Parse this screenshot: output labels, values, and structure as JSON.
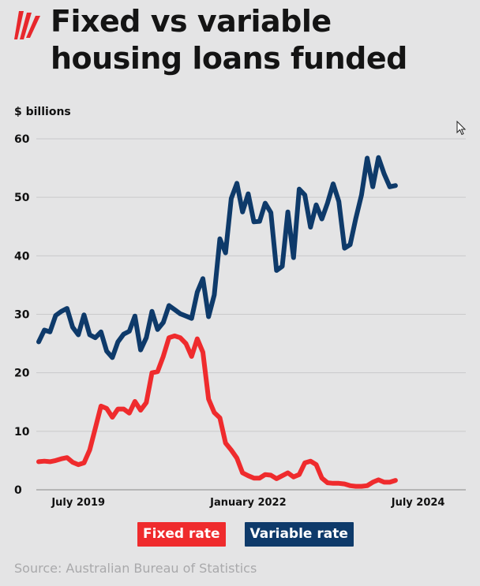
{
  "header": {
    "title_line1": "Fixed vs variable",
    "title_line2": "housing loans funded",
    "logo_icon": "sbs-flame-logo-icon",
    "logo_color": "#e8272c"
  },
  "chart_data": {
    "type": "line",
    "title": "Fixed vs variable housing loans funded",
    "ylabel": "$ billions",
    "xlabel": "",
    "ylim": [
      0,
      60
    ],
    "yticks": [
      0,
      10,
      20,
      30,
      40,
      50,
      60
    ],
    "grid": true,
    "legend_position": "bottom",
    "x_range": [
      "2018-12",
      "2025-03"
    ],
    "xticks": [
      {
        "label": "July 2019",
        "date": "2019-07"
      },
      {
        "label": "January 2022",
        "date": "2022-01"
      },
      {
        "label": "July 2024",
        "date": "2024-07"
      }
    ],
    "series": [
      {
        "name": "Fixed rate",
        "color": "#ef2b2d",
        "points": [
          [
            "2018-12",
            4.8
          ],
          [
            "2019-01",
            4.9
          ],
          [
            "2019-02",
            4.8
          ],
          [
            "2019-03",
            5.0
          ],
          [
            "2019-04",
            5.3
          ],
          [
            "2019-05",
            5.5
          ],
          [
            "2019-06",
            4.7
          ],
          [
            "2019-07",
            4.3
          ],
          [
            "2019-08",
            4.6
          ],
          [
            "2019-09",
            6.8
          ],
          [
            "2019-10",
            10.5
          ],
          [
            "2019-11",
            14.3
          ],
          [
            "2019-12",
            13.9
          ],
          [
            "2020-01",
            12.4
          ],
          [
            "2020-02",
            13.8
          ],
          [
            "2020-03",
            13.8
          ],
          [
            "2020-04",
            13.1
          ],
          [
            "2020-05",
            15.1
          ],
          [
            "2020-06",
            13.6
          ],
          [
            "2020-07",
            14.9
          ],
          [
            "2020-08",
            20.0
          ],
          [
            "2020-09",
            20.2
          ],
          [
            "2020-10",
            22.8
          ],
          [
            "2020-11",
            26.0
          ],
          [
            "2020-12",
            26.3
          ],
          [
            "2021-01",
            26.0
          ],
          [
            "2021-02",
            25.0
          ],
          [
            "2021-03",
            22.8
          ],
          [
            "2021-04",
            25.8
          ],
          [
            "2021-05",
            23.5
          ],
          [
            "2021-06",
            15.5
          ],
          [
            "2021-07",
            13.2
          ],
          [
            "2021-08",
            12.3
          ],
          [
            "2021-09",
            8.0
          ],
          [
            "2021-10",
            6.8
          ],
          [
            "2021-11",
            5.4
          ],
          [
            "2021-12",
            2.9
          ],
          [
            "2022-01",
            2.4
          ],
          [
            "2022-02",
            2.0
          ],
          [
            "2022-03",
            2.0
          ],
          [
            "2022-04",
            2.6
          ],
          [
            "2022-05",
            2.5
          ],
          [
            "2022-06",
            1.9
          ],
          [
            "2022-07",
            2.4
          ],
          [
            "2022-08",
            2.9
          ],
          [
            "2022-09",
            2.2
          ],
          [
            "2022-10",
            2.6
          ],
          [
            "2022-11",
            4.6
          ],
          [
            "2022-12",
            4.9
          ],
          [
            "2023-01",
            4.3
          ],
          [
            "2023-02",
            2.0
          ],
          [
            "2023-03",
            1.2
          ],
          [
            "2023-04",
            1.1
          ],
          [
            "2023-05",
            1.1
          ],
          [
            "2023-06",
            1.0
          ],
          [
            "2023-07",
            0.7
          ],
          [
            "2023-08",
            0.6
          ],
          [
            "2023-09",
            0.6
          ],
          [
            "2023-10",
            0.7
          ],
          [
            "2023-11",
            1.3
          ],
          [
            "2023-12",
            1.7
          ],
          [
            "2024-01",
            1.3
          ],
          [
            "2024-02",
            1.3
          ],
          [
            "2024-03",
            1.6
          ]
        ]
      },
      {
        "name": "Variable rate",
        "color": "#0e3a6a",
        "points": [
          [
            "2018-12",
            25.3
          ],
          [
            "2019-01",
            27.3
          ],
          [
            "2019-02",
            27.0
          ],
          [
            "2019-03",
            29.8
          ],
          [
            "2019-04",
            30.5
          ],
          [
            "2019-05",
            31.0
          ],
          [
            "2019-06",
            27.8
          ],
          [
            "2019-07",
            26.5
          ],
          [
            "2019-08",
            29.9
          ],
          [
            "2019-09",
            26.5
          ],
          [
            "2019-10",
            26.0
          ],
          [
            "2019-11",
            27.0
          ],
          [
            "2019-12",
            23.7
          ],
          [
            "2020-01",
            22.6
          ],
          [
            "2020-02",
            25.3
          ],
          [
            "2020-03",
            26.6
          ],
          [
            "2020-04",
            27.1
          ],
          [
            "2020-05",
            29.7
          ],
          [
            "2020-06",
            23.9
          ],
          [
            "2020-07",
            26.0
          ],
          [
            "2020-08",
            30.5
          ],
          [
            "2020-09",
            27.4
          ],
          [
            "2020-10",
            28.6
          ],
          [
            "2020-11",
            31.5
          ],
          [
            "2020-12",
            30.8
          ],
          [
            "2021-01",
            30.1
          ],
          [
            "2021-02",
            29.7
          ],
          [
            "2021-03",
            29.3
          ],
          [
            "2021-04",
            33.8
          ],
          [
            "2021-05",
            36.1
          ],
          [
            "2021-06",
            29.6
          ],
          [
            "2021-07",
            33.3
          ],
          [
            "2021-08",
            42.9
          ],
          [
            "2021-09",
            40.5
          ],
          [
            "2021-10",
            49.8
          ],
          [
            "2021-11",
            52.4
          ],
          [
            "2021-12",
            47.5
          ],
          [
            "2022-01",
            50.6
          ],
          [
            "2022-02",
            45.8
          ],
          [
            "2022-03",
            45.9
          ],
          [
            "2022-04",
            49.0
          ],
          [
            "2022-05",
            47.4
          ],
          [
            "2022-06",
            37.5
          ],
          [
            "2022-07",
            38.2
          ],
          [
            "2022-08",
            47.5
          ],
          [
            "2022-09",
            39.7
          ],
          [
            "2022-10",
            51.4
          ],
          [
            "2022-11",
            50.4
          ],
          [
            "2022-12",
            44.9
          ],
          [
            "2023-01",
            48.7
          ],
          [
            "2023-02",
            46.3
          ],
          [
            "2023-03",
            49.0
          ],
          [
            "2023-04",
            52.3
          ],
          [
            "2023-05",
            49.3
          ],
          [
            "2023-06",
            41.3
          ],
          [
            "2023-07",
            41.9
          ],
          [
            "2023-08",
            46.4
          ],
          [
            "2023-09",
            50.4
          ],
          [
            "2023-10",
            56.7
          ],
          [
            "2023-11",
            51.8
          ],
          [
            "2023-12",
            56.8
          ],
          [
            "2024-01",
            54.0
          ],
          [
            "2024-02",
            51.8
          ],
          [
            "2024-03",
            52.0
          ]
        ]
      }
    ]
  },
  "legend": {
    "fixed_label": "Fixed rate",
    "variable_label": "Variable rate",
    "fixed_color": "#ef2b2d",
    "variable_color": "#0e3a6a"
  },
  "source": "Source: Australian Bureau of Statistics"
}
